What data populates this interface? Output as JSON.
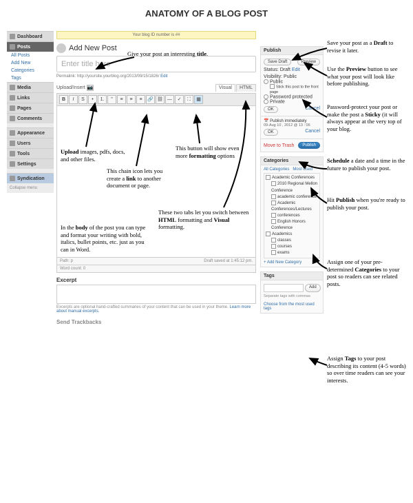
{
  "page_title": "ANATOMY OF A BLOG POST",
  "topbar_text": "Your blog ID number is ##",
  "sidebar": {
    "dashboard": "Dashboard",
    "posts": "Posts",
    "posts_sub": [
      "All Posts",
      "Add New",
      "Categories",
      "Tags"
    ],
    "media": "Media",
    "links": "Links",
    "pages": "Pages",
    "comments": "Comments",
    "appearance": "Appearance",
    "users": "Users",
    "tools": "Tools",
    "settings": "Settings",
    "syndication": "Syndication",
    "collapse": "Collapse menu"
  },
  "editor": {
    "heading": "Add New Post",
    "title_placeholder": "Enter title here",
    "permalink_label": "Permalink:",
    "permalink_url": "http://yoursite.yourblog.org/2013/09/15/1826/",
    "permalink_edit": "Edit",
    "upload_label": "Upload/Insert",
    "tab_visual": "Visual",
    "tab_html": "HTML",
    "path_label": "Path: p",
    "wordcount": "Word count: 0",
    "draft_saved": "Draft saved at 1:45:12 pm.",
    "excerpt_h": "Excerpt",
    "excerpt_note1": "Excerpts are optional hand-crafted summaries of your content that can be used in your theme. ",
    "excerpt_note2": "Learn more about manual excerpts.",
    "send_trackbacks": "Send Trackbacks"
  },
  "publish": {
    "title": "Publish",
    "save_draft": "Save Draft",
    "preview": "Preview",
    "status_label": "Status: Draft",
    "status_edit": "Edit",
    "visibility": "Visibility: Public",
    "opt_public": "Public",
    "opt_stick": "Stick this post to the front page",
    "opt_pwd": "Password protected",
    "opt_private": "Private",
    "ok": "OK",
    "cancel": "Cancel",
    "pub_immediately": "Publish immediately",
    "date": "09-Aug  10 , 2012  @  13 : 06",
    "move_trash": "Move to Trash",
    "publish_btn": "Publish"
  },
  "categories": {
    "title": "Categories",
    "tab_all": "All Categories",
    "tab_used": "Most Used",
    "items": [
      "Academic Conferences",
      "2010 Regional Mellon Conference",
      "academic conference",
      "Academic Conferences/Lectures",
      "conferences",
      "English Honors Conference"
    ],
    "group": "Academics",
    "group_items": [
      "classes",
      "courses",
      "exams"
    ],
    "add_new": "+ Add New Category"
  },
  "tags": {
    "title": "Tags",
    "add": "Add",
    "separate": "Separate tags with commas",
    "choose": "Choose from the most used tags"
  },
  "callouts": {
    "c_title": "Give your post an interesting <b>title</b>.",
    "c_upload": "<b>Upload</b> images, pdfs, docs, and other files.",
    "c_link": "This chain icon lets you create a <b>link</b> to another document or page.",
    "c_kitchen": "This button will show even more <b>formatting</b> options",
    "c_tabs": "These two tabs let you switch between <b>HTML</b> formatting and <b>Visual</b> formatting.",
    "c_body": "In the <b>body</b> of the post you can type and format your writing with bold, italics, bullet points, etc. just as you can in Word.",
    "c_draft": "Save your post as a <b>Draft</b> to revise it later.",
    "c_preview": "Use the <b>Preview</b> button to see what your post will look like before publishing.",
    "c_password": "Password-protect your post or make the post a <b>Sticky</b> (it will always appear at the very top of your blog.",
    "c_schedule": "<b>Schedule</b> a date and a time in the future to publish your post.",
    "c_publish": "Hit <b>Publish</b> when you're ready to publish your post.",
    "c_categories": "Assign one of your pre-determined <b>Categories</b> to your post so readers can see related posts.",
    "c_tags": "Assign <b>Tags</b> to your post describing its content (4-5 words) so over time readers can see your interests."
  }
}
